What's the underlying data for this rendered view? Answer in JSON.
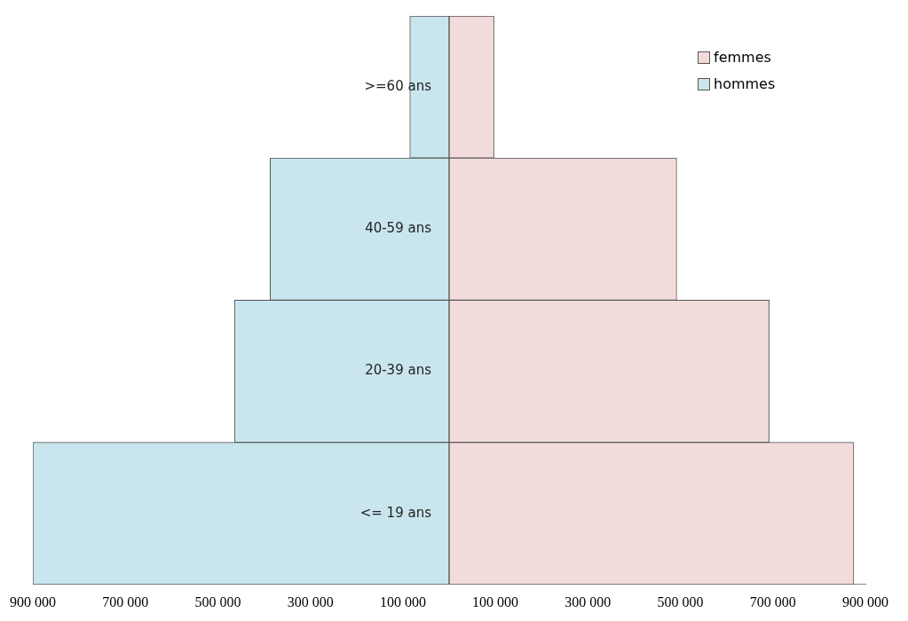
{
  "chart_data": {
    "type": "bar",
    "orientation": "horizontal",
    "stacked": true,
    "categories": [
      ">=60 ans",
      "40-59 ans",
      "20-39 ans",
      "<= 19 ans"
    ],
    "series": [
      {
        "name": "femmes",
        "color": "#f2dcdb",
        "values": [
          97000,
          492000,
          692000,
          875000
        ]
      },
      {
        "name": "hommes",
        "color": "#c9e6ee",
        "values": [
          -85000,
          -387000,
          -464000,
          -900000
        ]
      }
    ],
    "xlim": [
      -900000,
      900000
    ],
    "xticks": [
      {
        "value": -900000,
        "label": "900 000"
      },
      {
        "value": -700000,
        "label": "700 000"
      },
      {
        "value": -500000,
        "label": "500 000"
      },
      {
        "value": -300000,
        "label": "300 000"
      },
      {
        "value": -100000,
        "label": "100 000"
      },
      {
        "value": 100000,
        "label": "100 000"
      },
      {
        "value": 300000,
        "label": "300 000"
      },
      {
        "value": 500000,
        "label": "500 000"
      },
      {
        "value": 700000,
        "label": "700 000"
      },
      {
        "value": 900000,
        "label": "900 000"
      }
    ],
    "grid": false,
    "legend": "top right"
  }
}
